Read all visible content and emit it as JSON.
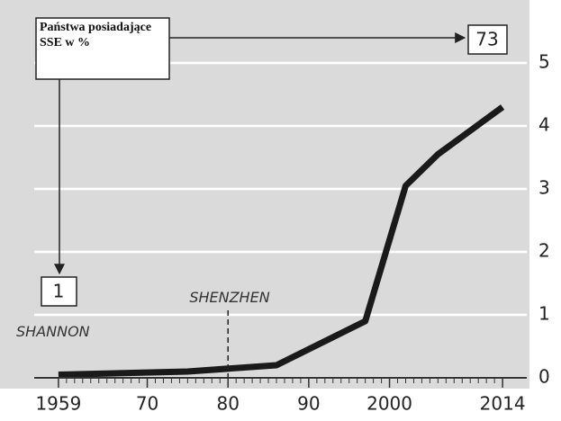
{
  "chart_data": {
    "type": "line",
    "annotations": {
      "box": "Państwa posiadające SSE w %",
      "start_value": "1",
      "end_value": "73",
      "shenzhen": "SHENZHEN",
      "shannon": "SHANNON"
    },
    "x": [
      1959,
      1975,
      1986,
      1997,
      2002,
      2006,
      2014
    ],
    "series": [
      {
        "color": "#1a1a1a",
        "values": [
          0.05,
          0.1,
          0.2,
          0.9,
          3.05,
          3.55,
          4.3
        ]
      }
    ],
    "xlim": [
      1956,
      2017
    ],
    "xticks": [
      1959,
      {
        "value": 1970,
        "label": "70"
      },
      {
        "value": 1980,
        "label": "80"
      },
      {
        "value": 1990,
        "label": "90"
      },
      2000,
      2014
    ],
    "ylim": [
      0,
      6
    ],
    "yticks": [
      0,
      1,
      2,
      3,
      4,
      5
    ],
    "shenzhen_year": 1980,
    "grid": true
  }
}
